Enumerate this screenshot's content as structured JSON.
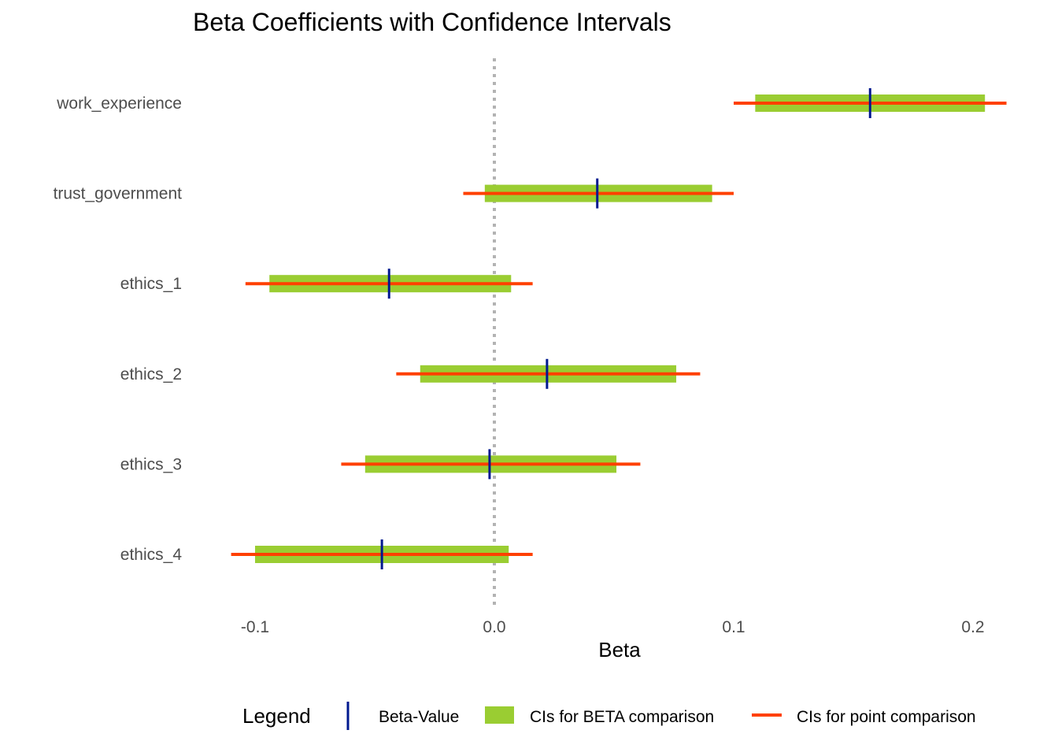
{
  "chart_data": {
    "type": "forest",
    "title": "Beta Coefficients with Confidence Intervals",
    "xlabel": "Beta",
    "ylabel": "",
    "xlim": [
      -0.1,
      0.2
    ],
    "x_ticks": [
      "-0.1",
      "0.0",
      "0.1",
      "0.2"
    ],
    "x_tick_values": [
      -0.1,
      0.0,
      0.1,
      0.2
    ],
    "reference_line": 0.0,
    "categories": [
      "work_experience",
      "trust_government",
      "ethics_1",
      "ethics_2",
      "ethics_3",
      "ethics_4"
    ],
    "series": [
      {
        "name": "Beta-Value",
        "values": [
          0.157,
          0.043,
          -0.044,
          0.022,
          -0.002,
          -0.047
        ]
      },
      {
        "name": "CIs for BETA comparison",
        "low": [
          0.109,
          -0.004,
          -0.094,
          -0.031,
          -0.054,
          -0.1
        ],
        "high": [
          0.205,
          0.091,
          0.007,
          0.076,
          0.051,
          0.006
        ]
      },
      {
        "name": "CIs for point comparison",
        "low": [
          0.1,
          -0.013,
          -0.104,
          -0.041,
          -0.064,
          -0.11
        ],
        "high": [
          0.214,
          0.1,
          0.016,
          0.086,
          0.061,
          0.016
        ]
      }
    ],
    "colors": {
      "beta": "#00198f",
      "ci_beta": "#9acd32",
      "ci_point": "#ff4000",
      "reference": "#b3b3b3"
    },
    "legend": {
      "title": "Legend",
      "position": "bottom",
      "items": [
        "Beta-Value",
        "CIs for BETA comparison",
        "CIs for point comparison"
      ]
    },
    "grid": false
  }
}
